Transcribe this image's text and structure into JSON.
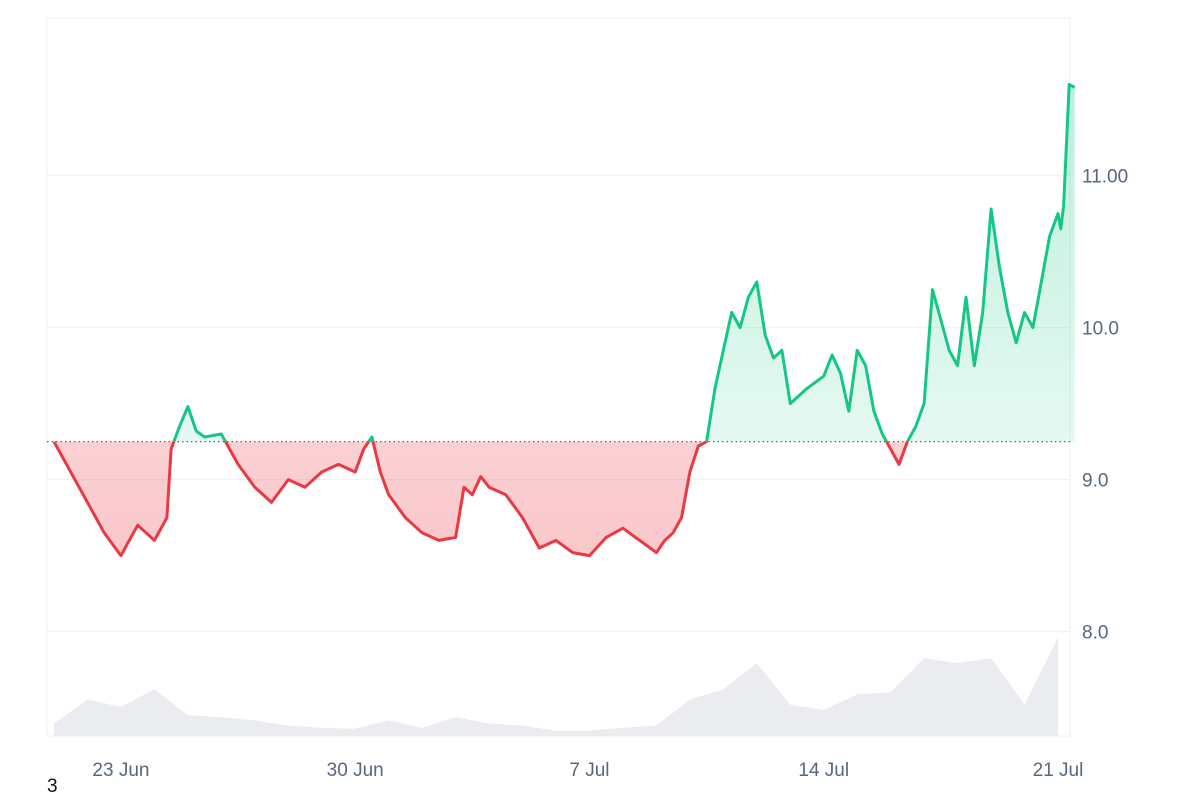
{
  "chart_data": {
    "type": "area",
    "baseline": 9.25,
    "ylim": [
      7.3,
      12.0
    ],
    "y_ticks": [
      {
        "value": 8.0,
        "label": "8.0"
      },
      {
        "value": 9.0,
        "label": "9.0"
      },
      {
        "value": 10.0,
        "label": "10.0"
      },
      {
        "value": 11.0,
        "label": "11.00"
      }
    ],
    "x_start": "2025-06-21",
    "x_end": "2025-07-21",
    "x_ticks": [
      {
        "date": "2025-06-23",
        "label": "23 Jun"
      },
      {
        "date": "2025-06-30",
        "label": "30 Jun"
      },
      {
        "date": "2025-07-07",
        "label": "7 Jul"
      },
      {
        "date": "2025-07-14",
        "label": "14 Jul"
      },
      {
        "date": "2025-07-21",
        "label": "21 Jul"
      }
    ],
    "colors": {
      "up": "#16c784",
      "down": "#ea3943",
      "volume": "#eaecf0"
    },
    "price": [
      [
        "2025-06-21",
        9.25
      ],
      [
        "2025-06-21T12:00",
        9.05
      ],
      [
        "2025-06-22",
        8.85
      ],
      [
        "2025-06-22T12:00",
        8.65
      ],
      [
        "2025-06-23",
        8.5
      ],
      [
        "2025-06-23T12:00",
        8.7
      ],
      [
        "2025-06-24",
        8.6
      ],
      [
        "2025-06-24T09:00",
        8.75
      ],
      [
        "2025-06-24T12:00",
        9.2
      ],
      [
        "2025-06-24T18:00",
        9.35
      ],
      [
        "2025-06-25",
        9.48
      ],
      [
        "2025-06-25T06:00",
        9.32
      ],
      [
        "2025-06-25T12:00",
        9.28
      ],
      [
        "2025-06-26",
        9.3
      ],
      [
        "2025-06-26T12:00",
        9.1
      ],
      [
        "2025-06-27",
        8.95
      ],
      [
        "2025-06-27T12:00",
        8.85
      ],
      [
        "2025-06-28",
        9.0
      ],
      [
        "2025-06-28T12:00",
        8.95
      ],
      [
        "2025-06-29",
        9.05
      ],
      [
        "2025-06-29T12:00",
        9.1
      ],
      [
        "2025-06-30",
        9.05
      ],
      [
        "2025-06-30T06:00",
        9.2
      ],
      [
        "2025-06-30T12:00",
        9.28
      ],
      [
        "2025-06-30T18:00",
        9.05
      ],
      [
        "2025-07-01",
        8.9
      ],
      [
        "2025-07-01T12:00",
        8.75
      ],
      [
        "2025-07-02",
        8.65
      ],
      [
        "2025-07-02T12:00",
        8.6
      ],
      [
        "2025-07-03",
        8.62
      ],
      [
        "2025-07-03T06:00",
        8.95
      ],
      [
        "2025-07-03T12:00",
        8.9
      ],
      [
        "2025-07-03T18:00",
        9.02
      ],
      [
        "2025-07-04",
        8.95
      ],
      [
        "2025-07-04T12:00",
        8.9
      ],
      [
        "2025-07-05",
        8.75
      ],
      [
        "2025-07-05T12:00",
        8.55
      ],
      [
        "2025-07-06",
        8.6
      ],
      [
        "2025-07-06T12:00",
        8.52
      ],
      [
        "2025-07-07",
        8.5
      ],
      [
        "2025-07-07T12:00",
        8.62
      ],
      [
        "2025-07-08",
        8.68
      ],
      [
        "2025-07-08T12:00",
        8.6
      ],
      [
        "2025-07-09",
        8.52
      ],
      [
        "2025-07-09T06:00",
        8.6
      ],
      [
        "2025-07-09T12:00",
        8.65
      ],
      [
        "2025-07-09T18:00",
        8.75
      ],
      [
        "2025-07-10",
        9.05
      ],
      [
        "2025-07-10T06:00",
        9.22
      ],
      [
        "2025-07-10T12:00",
        9.25
      ],
      [
        "2025-07-10T18:00",
        9.6
      ],
      [
        "2025-07-11",
        9.85
      ],
      [
        "2025-07-11T06:00",
        10.1
      ],
      [
        "2025-07-11T12:00",
        10.0
      ],
      [
        "2025-07-11T18:00",
        10.2
      ],
      [
        "2025-07-12",
        10.3
      ],
      [
        "2025-07-12T06:00",
        9.95
      ],
      [
        "2025-07-12T12:00",
        9.8
      ],
      [
        "2025-07-12T18:00",
        9.85
      ],
      [
        "2025-07-13",
        9.5
      ],
      [
        "2025-07-13T12:00",
        9.6
      ],
      [
        "2025-07-14",
        9.68
      ],
      [
        "2025-07-14T06:00",
        9.82
      ],
      [
        "2025-07-14T12:00",
        9.7
      ],
      [
        "2025-07-14T18:00",
        9.45
      ],
      [
        "2025-07-15",
        9.85
      ],
      [
        "2025-07-15T06:00",
        9.75
      ],
      [
        "2025-07-15T12:00",
        9.45
      ],
      [
        "2025-07-15T18:00",
        9.3
      ],
      [
        "2025-07-16",
        9.2
      ],
      [
        "2025-07-16T06:00",
        9.1
      ],
      [
        "2025-07-16T12:00",
        9.25
      ],
      [
        "2025-07-16T18:00",
        9.35
      ],
      [
        "2025-07-17",
        9.5
      ],
      [
        "2025-07-17T06:00",
        10.25
      ],
      [
        "2025-07-17T12:00",
        10.05
      ],
      [
        "2025-07-17T18:00",
        9.85
      ],
      [
        "2025-07-18",
        9.75
      ],
      [
        "2025-07-18T06:00",
        10.2
      ],
      [
        "2025-07-18T12:00",
        9.75
      ],
      [
        "2025-07-18T18:00",
        10.1
      ],
      [
        "2025-07-19",
        10.78
      ],
      [
        "2025-07-19T06:00",
        10.4
      ],
      [
        "2025-07-19T12:00",
        10.1
      ],
      [
        "2025-07-19T18:00",
        9.9
      ],
      [
        "2025-07-20",
        10.1
      ],
      [
        "2025-07-20T06:00",
        10.0
      ],
      [
        "2025-07-20T12:00",
        10.3
      ],
      [
        "2025-07-20T18:00",
        10.6
      ],
      [
        "2025-07-21",
        10.75
      ],
      [
        "2025-07-21T02:00",
        10.65
      ],
      [
        "2025-07-21T04:00",
        10.8
      ],
      [
        "2025-07-21T08:00",
        11.6
      ],
      [
        "2025-07-21T12:00",
        11.58
      ]
    ],
    "volume": [
      [
        "2025-06-21",
        0.12
      ],
      [
        "2025-06-22",
        0.35
      ],
      [
        "2025-06-23",
        0.28
      ],
      [
        "2025-06-24",
        0.45
      ],
      [
        "2025-06-25",
        0.2
      ],
      [
        "2025-06-26",
        0.18
      ],
      [
        "2025-06-27",
        0.15
      ],
      [
        "2025-06-28",
        0.1
      ],
      [
        "2025-06-29",
        0.08
      ],
      [
        "2025-06-30",
        0.07
      ],
      [
        "2025-07-01",
        0.15
      ],
      [
        "2025-07-02",
        0.08
      ],
      [
        "2025-07-03",
        0.18
      ],
      [
        "2025-07-04",
        0.12
      ],
      [
        "2025-07-05",
        0.1
      ],
      [
        "2025-07-06",
        0.05
      ],
      [
        "2025-07-07",
        0.05
      ],
      [
        "2025-07-08",
        0.08
      ],
      [
        "2025-07-09",
        0.1
      ],
      [
        "2025-07-10",
        0.35
      ],
      [
        "2025-07-11",
        0.45
      ],
      [
        "2025-07-12",
        0.7
      ],
      [
        "2025-07-13",
        0.3
      ],
      [
        "2025-07-14",
        0.25
      ],
      [
        "2025-07-15",
        0.4
      ],
      [
        "2025-07-16",
        0.42
      ],
      [
        "2025-07-17",
        0.75
      ],
      [
        "2025-07-18",
        0.7
      ],
      [
        "2025-07-19",
        0.75
      ],
      [
        "2025-07-20",
        0.3
      ],
      [
        "2025-07-21",
        0.95
      ]
    ]
  },
  "footnote": "3"
}
